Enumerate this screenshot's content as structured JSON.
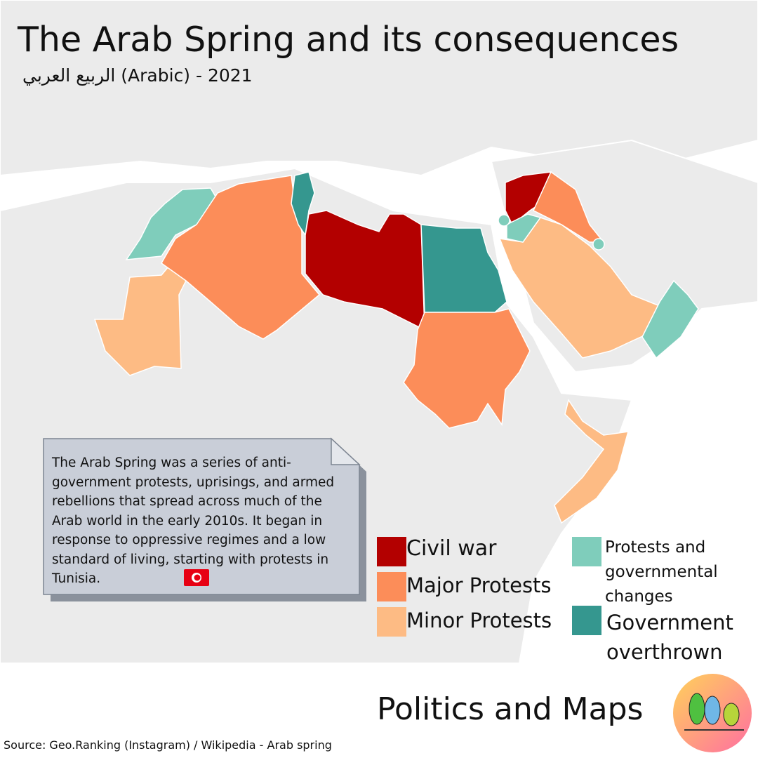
{
  "header": {
    "title": "The Arab Spring and its consequences",
    "subtitle": "الربيع العربي (Arabic) - 2021"
  },
  "description": "The Arab Spring was a series of anti-government protests, uprisings, and armed rebellions that spread across much of the Arab world in the early 2010s. It began in response to oppressive regimes and a low standard of living, starting with protests in Tunisia.",
  "legend": [
    {
      "label": "Civil war",
      "color": "#b30000"
    },
    {
      "label": "Major Protests",
      "color": "#fc8d59"
    },
    {
      "label": "Minor Protests",
      "color": "#fdbb84"
    },
    {
      "label": "Protests and governmental changes",
      "color": "#7fcdbb"
    },
    {
      "label": "Government overthrown",
      "color": "#35978f"
    }
  ],
  "brand": "Politics and Maps",
  "source": "Source: Geo.Ranking (Instagram) / Wikipedia - Arab spring"
}
